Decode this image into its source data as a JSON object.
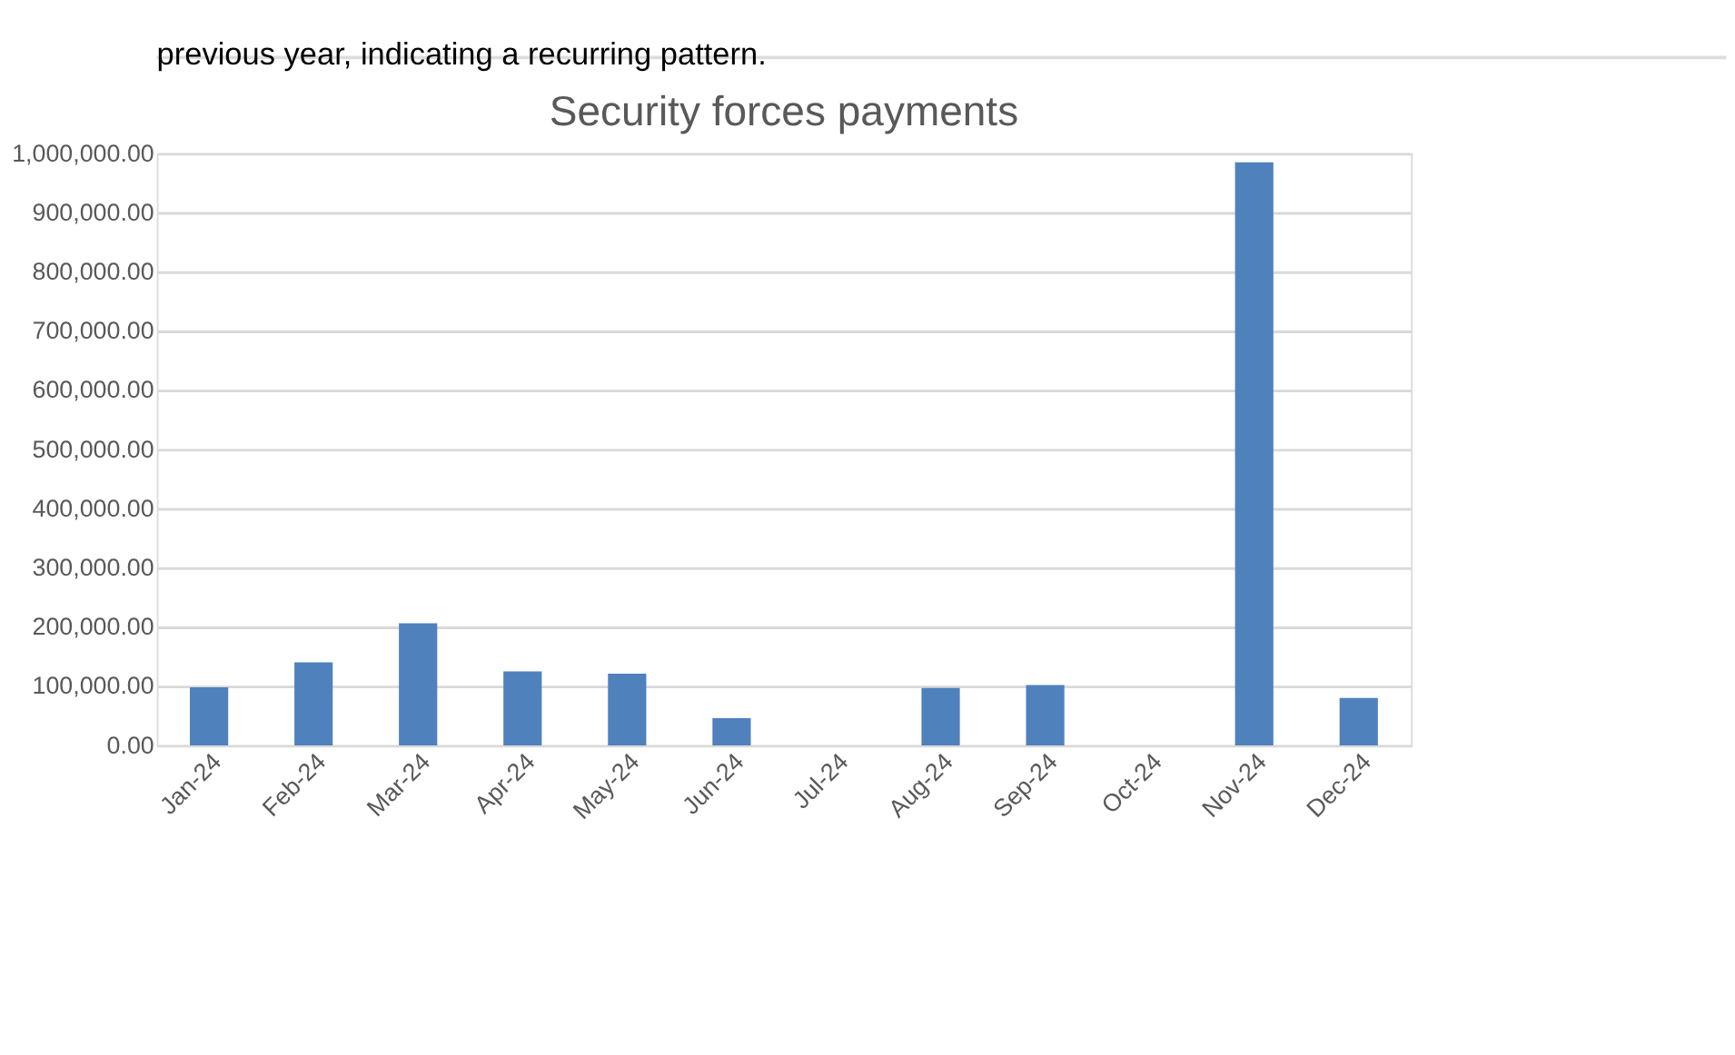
{
  "chart_data": {
    "type": "bar",
    "title": "Security forces payments",
    "categories": [
      "Jan-24",
      "Feb-24",
      "Mar-24",
      "Apr-24",
      "May-24",
      "Jun-24",
      "Jul-24",
      "Aug-24",
      "Sep-24",
      "Oct-24",
      "Nov-24",
      "Dec-24"
    ],
    "series": [
      {
        "color": "#4f81bd",
        "values": [
          98000,
          140000,
          206000,
          125000,
          121000,
          46000,
          0,
          97000,
          102000,
          0,
          985000,
          80000
        ]
      }
    ],
    "ylim": [
      0,
      1000000
    ],
    "yticks": [
      {
        "value": 0,
        "label": "0.00"
      },
      {
        "value": 100000,
        "label": "100,000.00"
      },
      {
        "value": 200000,
        "label": "200,000.00"
      },
      {
        "value": 300000,
        "label": "300,000.00"
      },
      {
        "value": 400000,
        "label": "400,000.00"
      },
      {
        "value": 500000,
        "label": "500,000.00"
      },
      {
        "value": 600000,
        "label": "600,000.00"
      },
      {
        "value": 700000,
        "label": "700,000.00"
      },
      {
        "value": 800000,
        "label": "800,000.00"
      },
      {
        "value": 900000,
        "label": "900,000.00"
      },
      {
        "value": 1000000,
        "label": "1,000,000.00"
      }
    ],
    "grid": "y",
    "annotations": [
      "previous year, indicating a recurring pattern."
    ]
  }
}
